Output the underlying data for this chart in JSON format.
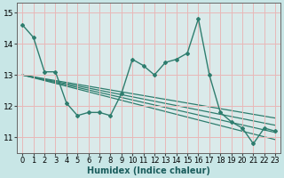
{
  "x": [
    0,
    1,
    2,
    3,
    4,
    5,
    6,
    7,
    8,
    9,
    10,
    11,
    12,
    13,
    14,
    15,
    16,
    17,
    18,
    19,
    20,
    21,
    22,
    23
  ],
  "main_line": [
    14.6,
    14.2,
    13.1,
    13.1,
    12.1,
    11.7,
    11.8,
    11.8,
    11.7,
    12.4,
    13.5,
    13.3,
    13.0,
    13.4,
    13.5,
    13.7,
    14.8,
    13.0,
    11.8,
    11.5,
    11.3,
    10.8,
    11.3,
    11.2
  ],
  "trend_lines": [
    [
      13.0,
      12.94,
      12.88,
      12.82,
      12.76,
      12.7,
      12.64,
      12.58,
      12.52,
      12.46,
      12.4,
      12.34,
      12.28,
      12.22,
      12.16,
      12.1,
      12.04,
      11.98,
      11.92,
      11.86,
      11.8,
      11.74,
      11.68,
      11.62
    ],
    [
      13.0,
      12.93,
      12.86,
      12.79,
      12.72,
      12.65,
      12.58,
      12.51,
      12.44,
      12.37,
      12.3,
      12.23,
      12.16,
      12.09,
      12.02,
      11.95,
      11.88,
      11.81,
      11.74,
      11.67,
      11.6,
      11.53,
      11.46,
      11.39
    ],
    [
      13.0,
      12.92,
      12.84,
      12.76,
      12.68,
      12.6,
      12.52,
      12.44,
      12.36,
      12.28,
      12.2,
      12.12,
      12.04,
      11.96,
      11.88,
      11.8,
      11.72,
      11.64,
      11.56,
      11.48,
      11.4,
      11.32,
      11.24,
      11.16
    ],
    [
      13.0,
      12.91,
      12.82,
      12.73,
      12.64,
      12.55,
      12.46,
      12.37,
      12.28,
      12.19,
      12.1,
      12.01,
      11.92,
      11.83,
      11.74,
      11.65,
      11.56,
      11.47,
      11.38,
      11.29,
      11.2,
      11.11,
      11.02,
      10.93
    ]
  ],
  "line_color": "#2e7d6e",
  "bg_color": "#c8e6e6",
  "grid_color": "#e8b8b8",
  "plot_bg": "#daeaea",
  "xlabel": "Humidex (Indice chaleur)",
  "ylim": [
    10.5,
    15.3
  ],
  "xlim": [
    -0.5,
    23.5
  ],
  "yticks": [
    11,
    12,
    13,
    14,
    15
  ],
  "xticks": [
    0,
    1,
    2,
    3,
    4,
    5,
    6,
    7,
    8,
    9,
    10,
    11,
    12,
    13,
    14,
    15,
    16,
    17,
    18,
    19,
    20,
    21,
    22,
    23
  ]
}
